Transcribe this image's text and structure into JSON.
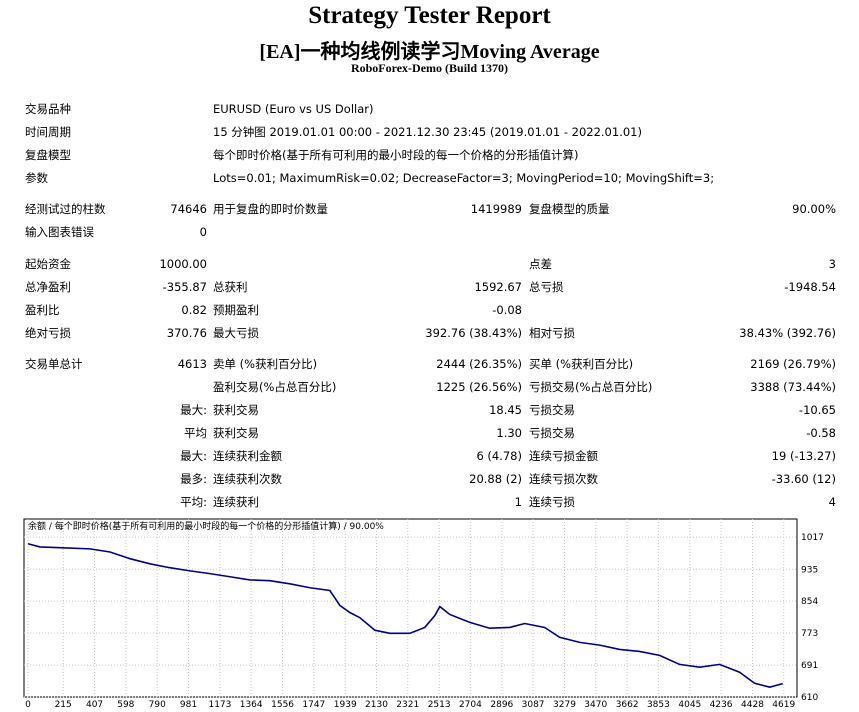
{
  "header": {
    "title": "Strategy Tester Report",
    "subtitle": "[EA]一种均线例读学习Moving Average",
    "server": "RoboForex-Demo (Build 1370)"
  },
  "settings": [
    {
      "label": "交易品种",
      "value": "EURUSD (Euro vs US Dollar)"
    },
    {
      "label": "时间周期",
      "value": "15 分钟图 2019.01.01 00:00 - 2021.12.30 23:45 (2019.01.01 - 2022.01.01)"
    },
    {
      "label": "复盘模型",
      "value": "每个即时价格(基于所有可利用的最小时段的每一个价格的分形插值计算)"
    },
    {
      "label": "参数",
      "value": "Lots=0.01; MaximumRisk=0.02; DecreaseFactor=3; MovingPeriod=10; MovingShift=3;"
    }
  ],
  "stats": [
    {
      "label1": "经测试过的柱数",
      "value1": "74646",
      "label2": "用于复盘的即时价数量",
      "value2": "1419989",
      "label3": "复盘模型的质量",
      "value3": "90.00%"
    },
    {
      "label1": "输入图表错误",
      "value1": "0"
    },
    {
      "label1": "起始资金",
      "value1": "1000.00",
      "label3": "点差",
      "value3": "3"
    },
    {
      "label1": "总净盈利",
      "value1": "-355.87",
      "label2": "总获利",
      "value2": "1592.67",
      "label3": "总亏损",
      "value3": "-1948.54"
    },
    {
      "label1": "盈利比",
      "value1": "0.82",
      "label2": "预期盈利",
      "value2": "-0.08"
    },
    {
      "label1": "绝对亏损",
      "value1": "370.76",
      "label2": "最大亏损",
      "value2": "392.76 (38.43%)",
      "label3": "相对亏损",
      "value3": "38.43% (392.76)"
    },
    {
      "label1": "交易单总计",
      "value1": "4613",
      "label2": "卖单 (%获利百分比)",
      "value2": "2444 (26.35%)",
      "label3": "买单 (%获利百分比)",
      "value3": "2169 (26.79%)"
    },
    {
      "label2": "盈利交易(%占总百分比)",
      "value2": "1225 (26.56%)",
      "label3": "亏损交易(%占总百分比)",
      "value3": "3388 (73.44%)"
    },
    {
      "value1": "最大:",
      "label2": "获利交易",
      "value2": "18.45",
      "label3": "亏损交易",
      "value3": "-10.65"
    },
    {
      "value1": "平均",
      "label2": "获利交易",
      "value2": "1.30",
      "label3": "亏损交易",
      "value3": "-0.58"
    },
    {
      "value1": "最大:",
      "label2": "连续获利金额",
      "value2": "6 (4.78)",
      "label3": "连续亏损金额",
      "value3": "19 (-13.27)"
    },
    {
      "value1": "最多:",
      "label2": "连续获利次数",
      "value2": "20.88 (2)",
      "label3": "连续亏损次数",
      "value3": "-33.60 (12)"
    },
    {
      "value1": "平均:",
      "label2": "连续获利",
      "value2": "1",
      "label3": "连续亏损",
      "value3": "4"
    }
  ],
  "chart_data": {
    "type": "line",
    "title": "余额 / 每个即时价格(基于所有可利用的最小时段的每一个价格的分形插值计算) / 90.00%",
    "x": [
      0,
      73,
      195,
      379,
      501,
      623,
      745,
      867,
      990,
      1112,
      1234,
      1356,
      1478,
      1600,
      1723,
      1845,
      1906,
      1967,
      2028,
      2120,
      2211,
      2333,
      2425,
      2486,
      2517,
      2578,
      2700,
      2822,
      2944,
      3036,
      3158,
      3249,
      3372,
      3494,
      3616,
      3738,
      3860,
      3982,
      4105,
      4227,
      4349,
      4441,
      4533,
      4613
    ],
    "series": [
      {
        "name": "余额",
        "color": "#00008b",
        "values": [
          1000,
          992,
          990,
          987,
          979,
          962,
          949,
          939,
          931,
          924,
          916,
          908,
          906,
          898,
          888,
          881,
          843,
          825,
          812,
          780,
          772,
          772,
          787,
          817,
          840,
          820,
          800,
          785,
          787,
          797,
          787,
          762,
          749,
          742,
          731,
          726,
          716,
          693,
          686,
          693,
          673,
          645,
          635,
          644
        ]
      }
    ],
    "xlim": [
      0,
      4700
    ],
    "ylim": [
      610,
      1063
    ],
    "xticks": [
      0,
      215,
      407,
      598,
      790,
      981,
      1173,
      1364,
      1556,
      1747,
      1939,
      2130,
      2321,
      2513,
      2704,
      2896,
      3087,
      3279,
      3470,
      3662,
      3853,
      4045,
      4236,
      4428,
      4619
    ],
    "yticks": [
      1017,
      935,
      854,
      773,
      691,
      610
    ],
    "grid": true
  }
}
